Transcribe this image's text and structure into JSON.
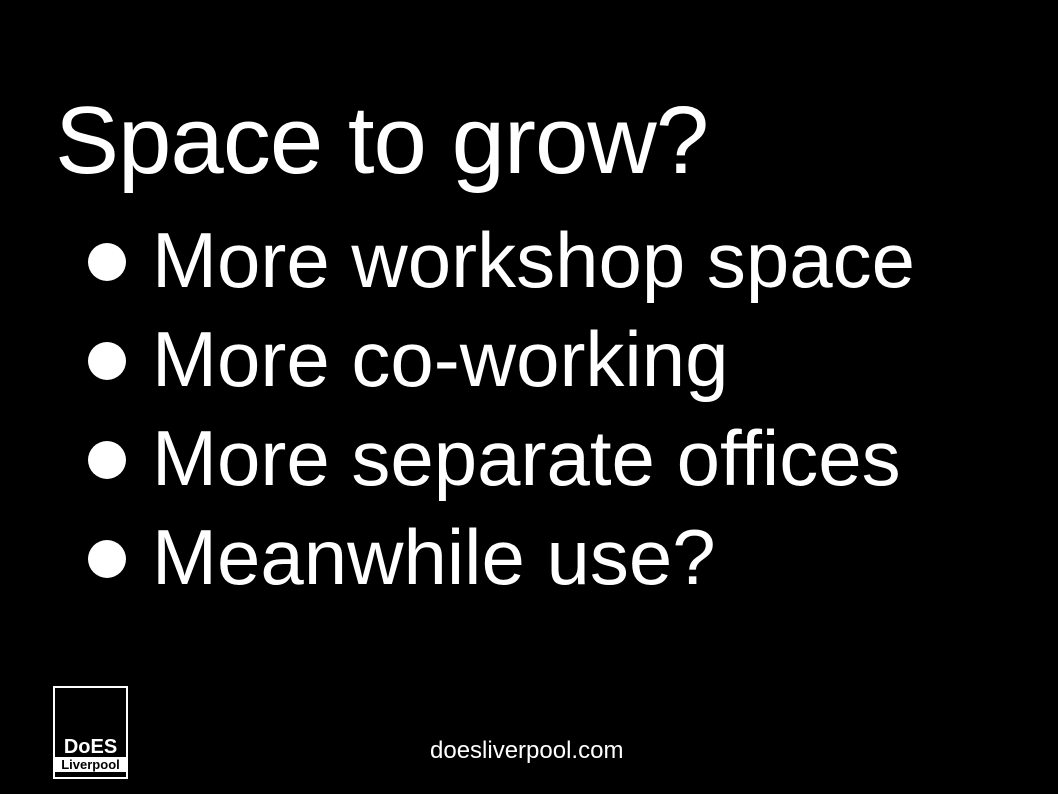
{
  "slide": {
    "title": "Space to grow?",
    "bullets": [
      "More workshop space",
      "More co-working",
      "More separate offices",
      "Meanwhile use?"
    ],
    "logo": {
      "line1": "DoES",
      "line2": "Liverpool"
    },
    "footer_url": "doesliverpool.com"
  },
  "colors": {
    "background": "#000000",
    "text": "#ffffff"
  }
}
